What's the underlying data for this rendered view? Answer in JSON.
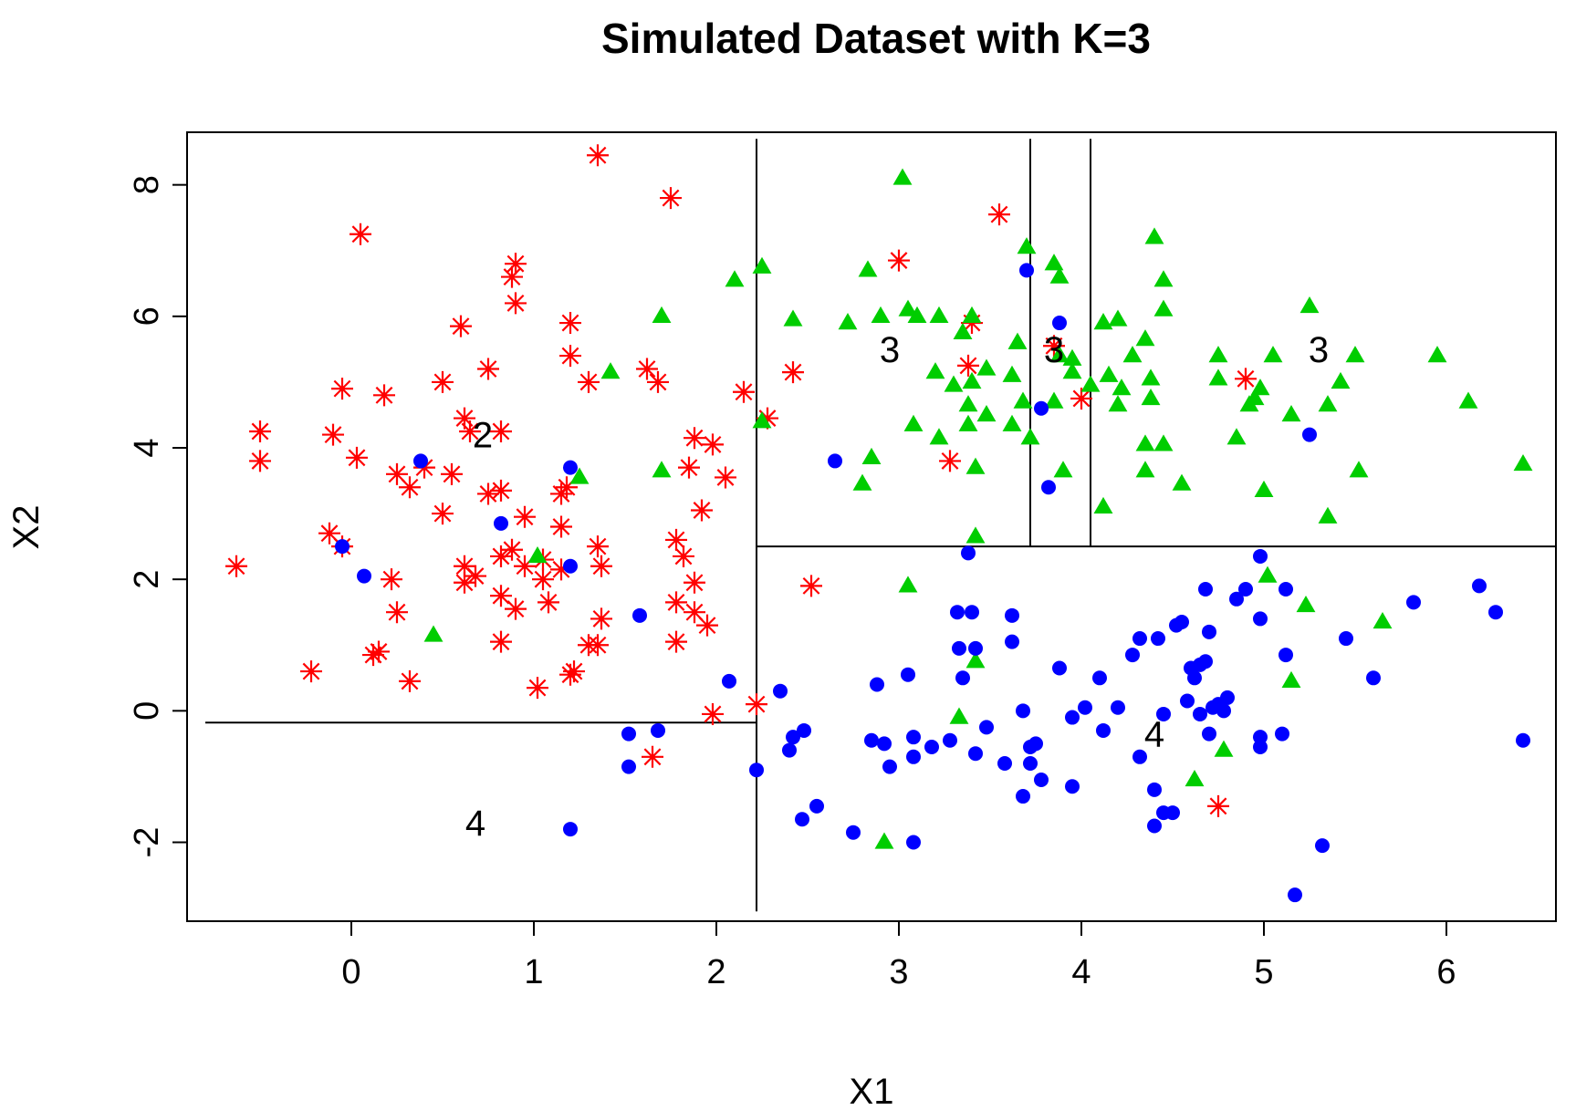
{
  "chart_data": {
    "type": "scatter",
    "title": "Simulated Dataset with K=3",
    "xlabel": "X1",
    "ylabel": "X2",
    "xlim": [
      -0.9,
      6.6
    ],
    "ylim": [
      -3.2,
      8.8
    ],
    "xticks": [
      "0",
      "1",
      "2",
      "3",
      "4",
      "5",
      "6"
    ],
    "yticks": [
      "-2",
      "0",
      "2",
      "4",
      "6",
      "8"
    ],
    "grid": false,
    "legend": "none",
    "colors": {
      "red": "#ff0000",
      "green": "#00cd00",
      "blue": "#0000ff"
    },
    "series": [
      {
        "marker": "asterisk",
        "color": "#ff0000",
        "points": [
          [
            1.35,
            8.45
          ],
          [
            1.75,
            7.8
          ],
          [
            0.05,
            7.25
          ],
          [
            3.55,
            7.55
          ],
          [
            3.0,
            6.85
          ],
          [
            0.9,
            6.8
          ],
          [
            0.88,
            6.6
          ],
          [
            0.9,
            6.2
          ],
          [
            0.6,
            5.85
          ],
          [
            1.2,
            5.9
          ],
          [
            1.2,
            5.4
          ],
          [
            1.3,
            5.0
          ],
          [
            0.75,
            5.2
          ],
          [
            0.5,
            5.0
          ],
          [
            -0.05,
            4.9
          ],
          [
            0.18,
            4.8
          ],
          [
            1.62,
            5.2
          ],
          [
            1.68,
            5.0
          ],
          [
            2.15,
            4.85
          ],
          [
            2.42,
            5.15
          ],
          [
            2.28,
            4.45
          ],
          [
            3.4,
            5.9
          ],
          [
            3.38,
            5.25
          ],
          [
            3.85,
            5.55
          ],
          [
            4.0,
            4.75
          ],
          [
            4.9,
            5.05
          ],
          [
            -0.5,
            4.25
          ],
          [
            -0.5,
            3.8
          ],
          [
            -0.1,
            4.2
          ],
          [
            0.03,
            3.85
          ],
          [
            0.62,
            4.45
          ],
          [
            0.65,
            4.25
          ],
          [
            0.82,
            4.25
          ],
          [
            0.25,
            3.6
          ],
          [
            0.32,
            3.4
          ],
          [
            0.4,
            3.7
          ],
          [
            0.55,
            3.6
          ],
          [
            0.5,
            3.0
          ],
          [
            0.75,
            3.3
          ],
          [
            0.82,
            3.35
          ],
          [
            1.15,
            3.3
          ],
          [
            1.18,
            3.4
          ],
          [
            0.95,
            2.95
          ],
          [
            1.15,
            2.8
          ],
          [
            1.88,
            4.15
          ],
          [
            1.98,
            4.05
          ],
          [
            2.05,
            3.55
          ],
          [
            1.85,
            3.7
          ],
          [
            1.92,
            3.05
          ],
          [
            3.28,
            3.8
          ],
          [
            -0.12,
            2.7
          ],
          [
            -0.05,
            2.5
          ],
          [
            -0.63,
            2.2
          ],
          [
            0.62,
            2.2
          ],
          [
            0.68,
            2.05
          ],
          [
            0.62,
            1.95
          ],
          [
            0.82,
            2.35
          ],
          [
            0.88,
            2.45
          ],
          [
            0.95,
            2.2
          ],
          [
            1.05,
            2.3
          ],
          [
            1.05,
            2.0
          ],
          [
            1.15,
            2.15
          ],
          [
            1.35,
            2.5
          ],
          [
            1.37,
            2.2
          ],
          [
            1.78,
            2.6
          ],
          [
            1.82,
            2.35
          ],
          [
            1.88,
            1.95
          ],
          [
            0.22,
            2.0
          ],
          [
            0.25,
            1.5
          ],
          [
            0.82,
            1.75
          ],
          [
            0.9,
            1.55
          ],
          [
            1.08,
            1.65
          ],
          [
            1.78,
            1.65
          ],
          [
            1.88,
            1.5
          ],
          [
            1.95,
            1.3
          ],
          [
            2.52,
            1.9
          ],
          [
            0.15,
            0.9
          ],
          [
            0.12,
            0.85
          ],
          [
            -0.22,
            0.6
          ],
          [
            0.32,
            0.45
          ],
          [
            0.82,
            1.05
          ],
          [
            1.3,
            1.0
          ],
          [
            1.35,
            1.0
          ],
          [
            1.37,
            1.4
          ],
          [
            1.78,
            1.05
          ],
          [
            1.02,
            0.35
          ],
          [
            1.22,
            0.6
          ],
          [
            1.2,
            0.55
          ],
          [
            2.22,
            0.1
          ],
          [
            1.98,
            -0.05
          ],
          [
            1.65,
            -0.7
          ],
          [
            4.75,
            -1.45
          ]
        ]
      },
      {
        "marker": "triangle",
        "color": "#00cd00",
        "points": [
          [
            3.02,
            8.1
          ],
          [
            4.4,
            7.2
          ],
          [
            3.7,
            7.05
          ],
          [
            3.85,
            6.8
          ],
          [
            3.88,
            6.6
          ],
          [
            4.45,
            6.55
          ],
          [
            2.25,
            6.75
          ],
          [
            2.1,
            6.55
          ],
          [
            2.83,
            6.7
          ],
          [
            4.45,
            6.1
          ],
          [
            5.25,
            6.15
          ],
          [
            1.7,
            6.0
          ],
          [
            2.42,
            5.95
          ],
          [
            2.72,
            5.9
          ],
          [
            2.9,
            6.0
          ],
          [
            3.05,
            6.1
          ],
          [
            3.1,
            6.0
          ],
          [
            3.22,
            6.0
          ],
          [
            3.4,
            6.0
          ],
          [
            4.12,
            5.9
          ],
          [
            4.2,
            5.95
          ],
          [
            3.65,
            5.6
          ],
          [
            3.88,
            5.4
          ],
          [
            3.95,
            5.35
          ],
          [
            4.28,
            5.4
          ],
          [
            4.35,
            5.65
          ],
          [
            3.35,
            5.75
          ],
          [
            4.75,
            5.4
          ],
          [
            5.05,
            5.4
          ],
          [
            5.5,
            5.4
          ],
          [
            5.95,
            5.4
          ],
          [
            1.42,
            5.15
          ],
          [
            3.2,
            5.15
          ],
          [
            3.48,
            5.2
          ],
          [
            3.62,
            5.1
          ],
          [
            3.95,
            5.15
          ],
          [
            4.15,
            5.1
          ],
          [
            4.38,
            5.05
          ],
          [
            4.75,
            5.05
          ],
          [
            4.98,
            4.9
          ],
          [
            5.42,
            5.0
          ],
          [
            3.3,
            4.95
          ],
          [
            3.4,
            5.0
          ],
          [
            4.05,
            4.95
          ],
          [
            4.22,
            4.9
          ],
          [
            3.38,
            4.65
          ],
          [
            3.48,
            4.5
          ],
          [
            3.68,
            4.7
          ],
          [
            3.85,
            4.7
          ],
          [
            4.2,
            4.65
          ],
          [
            4.38,
            4.75
          ],
          [
            4.92,
            4.65
          ],
          [
            4.95,
            4.75
          ],
          [
            5.35,
            4.65
          ],
          [
            6.12,
            4.7
          ],
          [
            2.25,
            4.4
          ],
          [
            3.08,
            4.35
          ],
          [
            3.22,
            4.15
          ],
          [
            3.38,
            4.35
          ],
          [
            3.62,
            4.35
          ],
          [
            3.72,
            4.15
          ],
          [
            4.35,
            4.05
          ],
          [
            4.45,
            4.05
          ],
          [
            4.85,
            4.15
          ],
          [
            5.15,
            4.5
          ],
          [
            3.42,
            3.7
          ],
          [
            3.9,
            3.65
          ],
          [
            4.35,
            3.65
          ],
          [
            5.52,
            3.65
          ],
          [
            6.42,
            3.75
          ],
          [
            1.7,
            3.65
          ],
          [
            1.25,
            3.55
          ],
          [
            2.8,
            3.45
          ],
          [
            2.85,
            3.85
          ],
          [
            4.12,
            3.1
          ],
          [
            4.55,
            3.45
          ],
          [
            5.0,
            3.35
          ],
          [
            5.35,
            2.95
          ],
          [
            3.42,
            2.65
          ],
          [
            1.02,
            2.35
          ],
          [
            3.05,
            1.9
          ],
          [
            5.02,
            2.05
          ],
          [
            5.23,
            1.6
          ],
          [
            5.65,
            1.35
          ],
          [
            0.45,
            1.15
          ],
          [
            3.42,
            0.75
          ],
          [
            5.15,
            0.45
          ],
          [
            3.33,
            -0.1
          ],
          [
            4.78,
            -0.6
          ],
          [
            4.62,
            -1.05
          ],
          [
            2.92,
            -2.0
          ]
        ]
      },
      {
        "marker": "circle",
        "color": "#0000ff",
        "points": [
          [
            3.7,
            6.7
          ],
          [
            3.88,
            5.9
          ],
          [
            3.78,
            4.6
          ],
          [
            5.25,
            4.2
          ],
          [
            2.65,
            3.8
          ],
          [
            3.82,
            3.4
          ],
          [
            0.38,
            3.8
          ],
          [
            1.2,
            3.7
          ],
          [
            0.82,
            2.85
          ],
          [
            -0.05,
            2.5
          ],
          [
            0.07,
            2.05
          ],
          [
            1.2,
            2.2
          ],
          [
            3.38,
            2.4
          ],
          [
            4.98,
            2.35
          ],
          [
            4.68,
            1.85
          ],
          [
            4.9,
            1.85
          ],
          [
            4.85,
            1.7
          ],
          [
            5.12,
            1.85
          ],
          [
            5.82,
            1.65
          ],
          [
            6.18,
            1.9
          ],
          [
            6.27,
            1.5
          ],
          [
            1.58,
            1.45
          ],
          [
            3.32,
            1.5
          ],
          [
            3.4,
            1.5
          ],
          [
            3.62,
            1.45
          ],
          [
            4.52,
            1.3
          ],
          [
            4.55,
            1.35
          ],
          [
            4.98,
            1.4
          ],
          [
            5.45,
            1.1
          ],
          [
            3.33,
            0.95
          ],
          [
            3.42,
            0.95
          ],
          [
            3.62,
            1.05
          ],
          [
            4.32,
            1.1
          ],
          [
            4.42,
            1.1
          ],
          [
            4.7,
            1.2
          ],
          [
            4.28,
            0.85
          ],
          [
            5.12,
            0.85
          ],
          [
            3.88,
            0.65
          ],
          [
            3.35,
            0.5
          ],
          [
            3.05,
            0.55
          ],
          [
            4.1,
            0.5
          ],
          [
            4.6,
            0.65
          ],
          [
            4.65,
            0.7
          ],
          [
            4.62,
            0.5
          ],
          [
            4.68,
            0.75
          ],
          [
            5.6,
            0.5
          ],
          [
            2.88,
            0.4
          ],
          [
            2.35,
            0.3
          ],
          [
            2.07,
            0.45
          ],
          [
            4.58,
            0.15
          ],
          [
            4.72,
            0.05
          ],
          [
            4.8,
            0.2
          ],
          [
            4.75,
            0.1
          ],
          [
            4.65,
            -0.05
          ],
          [
            3.68,
            0.0
          ],
          [
            4.02,
            0.05
          ],
          [
            4.2,
            0.05
          ],
          [
            3.95,
            -0.1
          ],
          [
            4.45,
            -0.05
          ],
          [
            4.78,
            0.0
          ],
          [
            3.48,
            -0.25
          ],
          [
            4.12,
            -0.3
          ],
          [
            4.7,
            -0.35
          ],
          [
            4.98,
            -0.4
          ],
          [
            5.1,
            -0.35
          ],
          [
            1.52,
            -0.35
          ],
          [
            1.68,
            -0.3
          ],
          [
            2.42,
            -0.4
          ],
          [
            2.48,
            -0.3
          ],
          [
            3.08,
            -0.4
          ],
          [
            3.28,
            -0.45
          ],
          [
            2.85,
            -0.45
          ],
          [
            2.92,
            -0.5
          ],
          [
            3.18,
            -0.55
          ],
          [
            3.08,
            -0.7
          ],
          [
            3.42,
            -0.65
          ],
          [
            3.72,
            -0.55
          ],
          [
            3.75,
            -0.5
          ],
          [
            4.98,
            -0.55
          ],
          [
            6.42,
            -0.45
          ],
          [
            2.4,
            -0.6
          ],
          [
            2.22,
            -0.9
          ],
          [
            2.95,
            -0.85
          ],
          [
            3.58,
            -0.8
          ],
          [
            3.72,
            -0.8
          ],
          [
            4.32,
            -0.7
          ],
          [
            1.52,
            -0.85
          ],
          [
            3.78,
            -1.05
          ],
          [
            3.95,
            -1.15
          ],
          [
            4.4,
            -1.2
          ],
          [
            3.68,
            -1.3
          ],
          [
            4.45,
            -1.55
          ],
          [
            4.5,
            -1.55
          ],
          [
            2.55,
            -1.45
          ],
          [
            2.47,
            -1.65
          ],
          [
            1.2,
            -1.8
          ],
          [
            2.75,
            -1.85
          ],
          [
            3.08,
            -2.0
          ],
          [
            4.4,
            -1.75
          ],
          [
            5.32,
            -2.05
          ],
          [
            5.17,
            -2.8
          ]
        ]
      }
    ],
    "partition_lines": [
      [
        2.22,
        -3.05,
        2.22,
        8.7
      ],
      [
        -0.8,
        -0.18,
        2.22,
        -0.18
      ],
      [
        2.22,
        2.5,
        6.6,
        2.5
      ],
      [
        3.72,
        2.5,
        3.72,
        8.7
      ],
      [
        4.05,
        2.5,
        4.05,
        8.7
      ]
    ],
    "region_labels": [
      {
        "text": "2",
        "x": 0.72,
        "y": 4.2
      },
      {
        "text": "4",
        "x": 0.68,
        "y": -1.7
      },
      {
        "text": "3",
        "x": 2.95,
        "y": 5.5
      },
      {
        "text": "3",
        "x": 3.85,
        "y": 5.5
      },
      {
        "text": "3",
        "x": 5.3,
        "y": 5.5
      },
      {
        "text": "4",
        "x": 4.4,
        "y": -0.35
      }
    ]
  }
}
